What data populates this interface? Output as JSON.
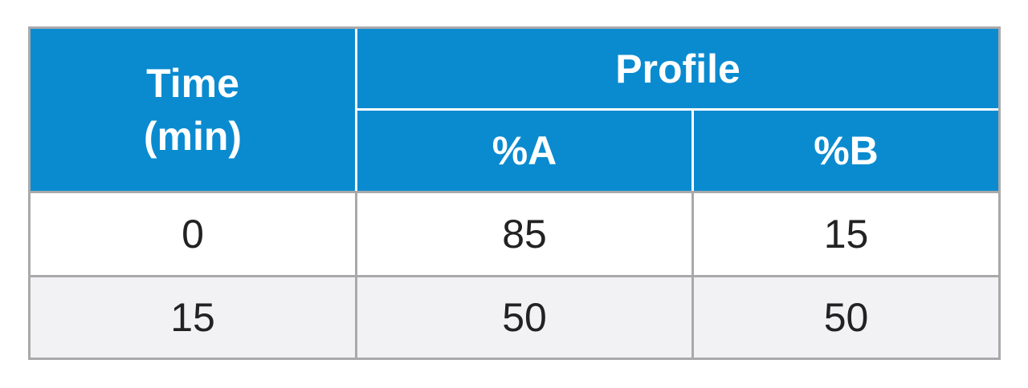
{
  "table": {
    "header": {
      "time": [
        "Time",
        "(min)"
      ],
      "profile": "Profile",
      "columns": [
        "%A",
        "%B"
      ]
    },
    "rows": [
      [
        0,
        85,
        15
      ],
      [
        15,
        50,
        50
      ]
    ]
  }
}
